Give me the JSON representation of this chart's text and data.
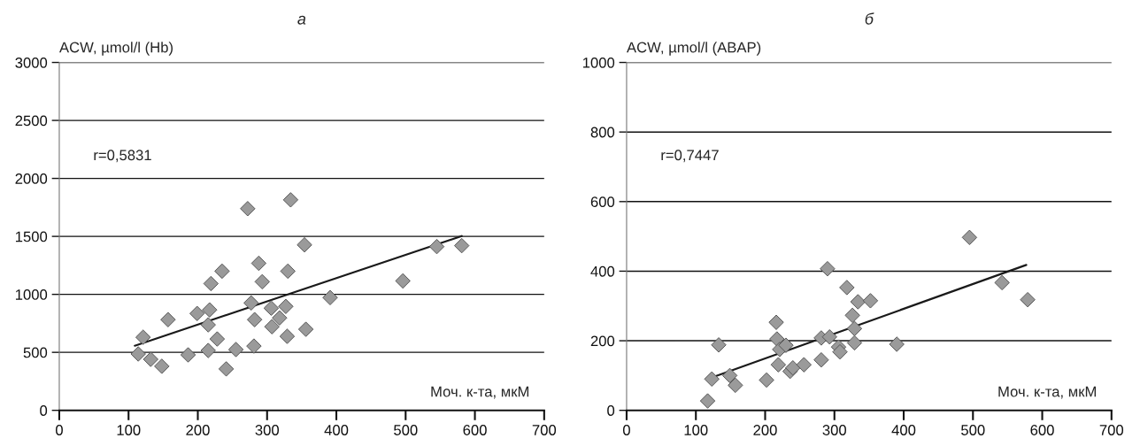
{
  "chart_data": [
    {
      "type": "scatter",
      "title": "а",
      "ylabel": "ACW, µmol/l (Hb)",
      "xlabel": "Моч. к-та, мкМ",
      "annotations": [
        "r=0,5831"
      ],
      "xlim": [
        0,
        700
      ],
      "xticks": [
        0,
        100,
        200,
        300,
        400,
        500,
        600,
        700
      ],
      "ylim": [
        0,
        3000
      ],
      "yticks": [
        0,
        500,
        1000,
        1500,
        2000,
        2500,
        3000
      ],
      "grid": "y",
      "series": [
        {
          "marker": "diamond",
          "color": "#9a9a9a",
          "x": [
            114,
            121,
            132,
            148,
            157,
            186,
            199,
            215,
            215,
            217,
            219,
            228,
            235,
            241,
            255,
            272,
            277,
            281,
            282,
            288,
            293,
            306,
            307,
            318,
            327,
            329,
            330,
            334,
            354,
            356,
            391,
            496,
            545,
            581
          ],
          "values": [
            486,
            630,
            440,
            380,
            782,
            478,
            835,
            516,
            737,
            866,
            1093,
            615,
            1200,
            357,
            524,
            1739,
            926,
            554,
            782,
            1268,
            1109,
            881,
            721,
            797,
            896,
            638,
            1200,
            1815,
            1427,
            699,
            972,
            1116,
            1412,
            1420
          ]
        },
        {
          "type": "line",
          "color": "#1a1a1a",
          "x": [
            109,
            581
          ],
          "values": [
            557,
            1503
          ]
        }
      ]
    },
    {
      "type": "scatter",
      "title": "б",
      "ylabel": "ACW, µmol/l (ABAP)",
      "xlabel": "Моч. к-та, мкМ",
      "annotations": [
        "r=0,7447"
      ],
      "xlim": [
        0,
        700
      ],
      "xticks": [
        0,
        100,
        200,
        300,
        400,
        500,
        600,
        700
      ],
      "ylim": [
        0,
        1000
      ],
      "yticks": [
        0,
        200,
        400,
        600,
        800,
        1000
      ],
      "grid": "y",
      "series": [
        {
          "marker": "diamond",
          "color": "#9a9a9a",
          "x": [
            117,
            123,
            133,
            149,
            157,
            202,
            216,
            217,
            221,
            230,
            219,
            236,
            240,
            256,
            281,
            281,
            290,
            293,
            306,
            308,
            318,
            326,
            329,
            329,
            334,
            352,
            390,
            495,
            542,
            579
          ],
          "values": [
            27,
            90,
            188,
            100,
            72,
            87,
            253,
            205,
            175,
            187,
            131,
            112,
            122,
            131,
            208,
            145,
            407,
            211,
            182,
            168,
            353,
            273,
            235,
            194,
            312,
            315,
            190,
            497,
            367,
            318
          ]
        },
        {
          "type": "line",
          "color": "#1a1a1a",
          "x": [
            127,
            577
          ],
          "values": [
            97,
            418
          ]
        }
      ]
    }
  ]
}
